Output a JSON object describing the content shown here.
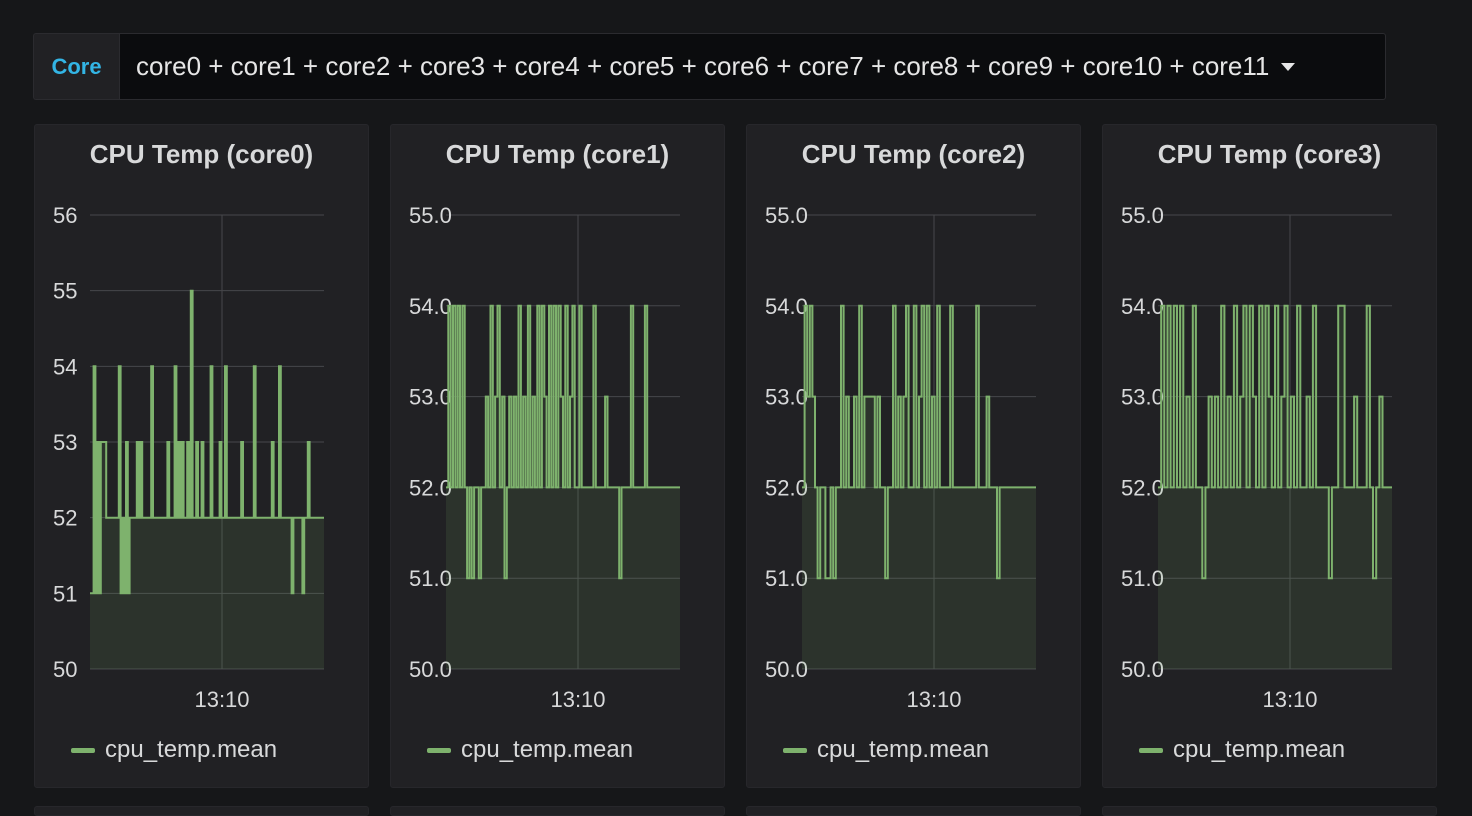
{
  "variable": {
    "label": "Core",
    "value": "core0 + core1 + core2 + core3 + core4 + core5 + core6 + core7 + core8 + core9 + core10 + core11"
  },
  "series_color": "#7eb26d",
  "chart_data": [
    {
      "type": "line",
      "title": "CPU Temp (core0)",
      "ylim": [
        50,
        56
      ],
      "yticks": [
        "50",
        "51",
        "52",
        "53",
        "54",
        "55",
        "56"
      ],
      "xticks": [
        "13:10"
      ],
      "grid": true,
      "legend": "bottom-left",
      "series": [
        {
          "name": "cpu_temp.mean",
          "values": [
            51,
            51,
            54,
            51,
            53,
            51,
            53,
            53,
            53,
            52,
            52,
            52,
            52,
            52,
            52,
            52,
            54,
            51,
            52,
            51,
            53,
            51,
            52,
            52,
            52,
            52,
            53,
            52,
            53,
            52,
            52,
            52,
            52,
            52,
            54,
            52,
            52,
            52,
            52,
            52,
            52,
            52,
            52,
            53,
            52,
            52,
            52,
            54,
            52,
            53,
            52,
            53,
            52,
            52,
            53,
            52,
            55,
            52,
            52,
            53,
            52,
            52,
            53,
            52,
            52,
            52,
            52,
            54,
            52,
            52,
            52,
            52,
            53,
            52,
            52,
            54,
            52,
            52,
            52,
            52,
            52,
            52,
            52,
            52,
            53,
            52,
            52,
            52,
            52,
            52,
            52,
            54,
            52,
            52,
            52,
            52,
            52,
            52,
            52,
            52,
            52,
            53,
            52,
            52,
            52,
            54,
            52,
            52,
            52,
            52,
            52,
            52,
            51,
            52,
            52,
            52,
            52,
            52,
            51,
            52,
            52,
            53,
            52,
            52,
            52,
            52,
            52,
            52,
            52,
            52
          ]
        }
      ]
    },
    {
      "type": "line",
      "title": "CPU Temp (core1)",
      "ylim": [
        50,
        55
      ],
      "yticks": [
        "50.0",
        "51.0",
        "52.0",
        "53.0",
        "54.0",
        "55.0"
      ],
      "xticks": [
        "13:10"
      ],
      "grid": true,
      "legend": "bottom-left",
      "series": [
        {
          "name": "cpu_temp.mean",
          "values": [
            52,
            54,
            52,
            54,
            52,
            54,
            52,
            54,
            52,
            51,
            52,
            51,
            52,
            52,
            51,
            52,
            52,
            53,
            52,
            54,
            52,
            53,
            54,
            52,
            53,
            51,
            52,
            53,
            52,
            53,
            52,
            54,
            52,
            53,
            52,
            54,
            52,
            53,
            52,
            54,
            52,
            54,
            53,
            52,
            54,
            52,
            54,
            52,
            54,
            53,
            52,
            54,
            52,
            53,
            54,
            52,
            52,
            54,
            52,
            52,
            52,
            52,
            52,
            54,
            52,
            52,
            52,
            52,
            53,
            52,
            52,
            52,
            52,
            52,
            51,
            52,
            52,
            52,
            52,
            54,
            52,
            52,
            52,
            52,
            52,
            54,
            52,
            52,
            52,
            52,
            52,
            52,
            52,
            52,
            52,
            52,
            52,
            52,
            52,
            52
          ]
        }
      ]
    },
    {
      "type": "line",
      "title": "CPU Temp (core2)",
      "ylim": [
        50,
        55
      ],
      "yticks": [
        "50.0",
        "51.0",
        "52.0",
        "53.0",
        "54.0",
        "55.0"
      ],
      "xticks": [
        "13:10"
      ],
      "grid": true,
      "legend": "bottom-left",
      "series": [
        {
          "name": "cpu_temp.mean",
          "values": [
            52,
            54,
            53,
            54,
            53,
            52,
            51,
            52,
            52,
            51,
            51,
            52,
            51,
            52,
            52,
            54,
            52,
            53,
            52,
            52,
            53,
            52,
            54,
            52,
            53,
            53,
            53,
            53,
            52,
            53,
            52,
            52,
            51,
            52,
            52,
            54,
            52,
            53,
            52,
            53,
            54,
            52,
            52,
            54,
            52,
            53,
            54,
            52,
            54,
            52,
            53,
            52,
            54,
            52,
            52,
            52,
            52,
            54,
            52,
            52,
            52,
            52,
            52,
            52,
            52,
            52,
            52,
            54,
            52,
            52,
            52,
            53,
            52,
            52,
            52,
            51,
            52,
            52,
            52,
            52,
            52,
            52,
            52,
            52,
            52,
            52,
            52,
            52,
            52,
            52
          ]
        }
      ]
    },
    {
      "type": "line",
      "title": "CPU Temp (core3)",
      "ylim": [
        50,
        55
      ],
      "yticks": [
        "50.0",
        "51.0",
        "52.0",
        "53.0",
        "54.0",
        "55.0"
      ],
      "xticks": [
        "13:10"
      ],
      "grid": true,
      "legend": "bottom-left",
      "series": [
        {
          "name": "cpu_temp.mean",
          "values": [
            52,
            54,
            52,
            54,
            52,
            54,
            52,
            54,
            52,
            53,
            52,
            54,
            52,
            52,
            51,
            52,
            53,
            52,
            53,
            52,
            54,
            52,
            53,
            52,
            54,
            52,
            53,
            54,
            52,
            54,
            53,
            52,
            54,
            52,
            54,
            53,
            52,
            54,
            52,
            53,
            54,
            52,
            53,
            52,
            54,
            52,
            52,
            53,
            52,
            54,
            52,
            52,
            52,
            52,
            51,
            52,
            52,
            54,
            54,
            52,
            52,
            52,
            53,
            52,
            52,
            52,
            54,
            52,
            51,
            52,
            53,
            52,
            52,
            52
          ]
        }
      ]
    }
  ]
}
